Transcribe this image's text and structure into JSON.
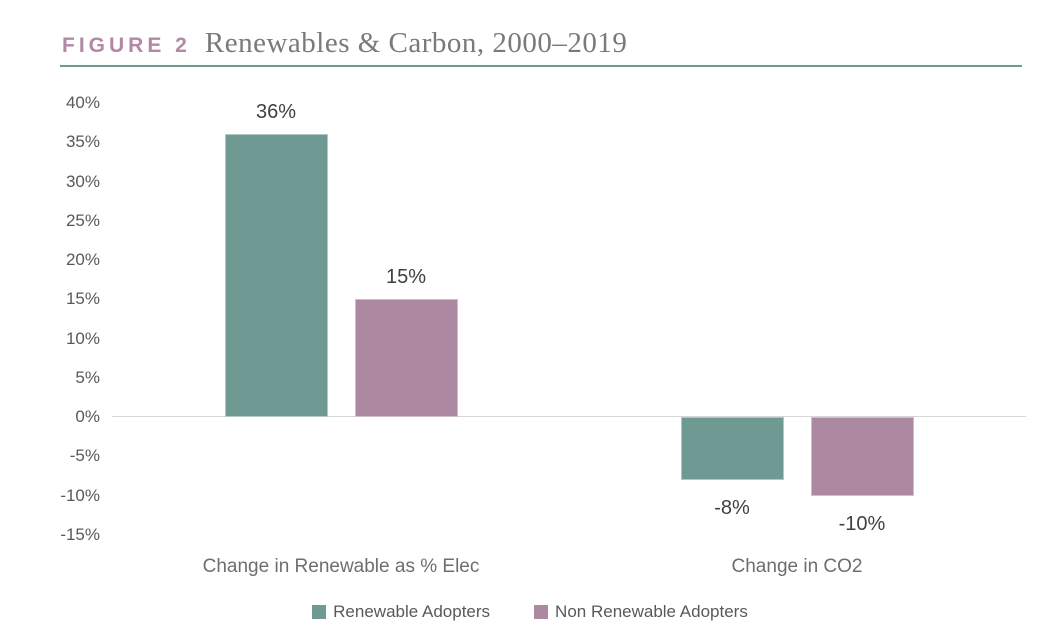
{
  "header": {
    "figure_label": "FIGURE 2",
    "title": "Renewables & Carbon, 2000–2019"
  },
  "colors": {
    "figure_label_text": "#B288A5",
    "title_text": "#7A7A7A",
    "title_underline": "#6E9A94",
    "axis_line": "#D6D6D6",
    "tick_text": "#595959",
    "data_label_text": "#404040",
    "category_label_text": "#6E6E6E",
    "legend_text": "#595959",
    "series_teal": "#6F9A94",
    "series_mauve": "#AC89A1"
  },
  "chart_data": {
    "type": "bar",
    "title": "Renewables & Carbon, 2000–2019",
    "figure_number": "FIGURE 2",
    "categories": [
      "Change in Renewable as % Elec",
      "Change in CO2"
    ],
    "series": [
      {
        "name": "Renewable Adopters",
        "color": "#6F9A94",
        "values": [
          36,
          -8
        ],
        "labels": [
          "36%",
          "-8%"
        ]
      },
      {
        "name": "Non Renewable Adopters",
        "color": "#AC89A1",
        "values": [
          15,
          -10
        ],
        "labels": [
          "15%",
          "-10%"
        ]
      }
    ],
    "ylim": [
      -15,
      40
    ],
    "y_tick_values": [
      40,
      35,
      30,
      25,
      20,
      15,
      10,
      5,
      0,
      -5,
      -10,
      -15
    ],
    "y_tick_labels": [
      "40%",
      "35%",
      "30%",
      "25%",
      "20%",
      "15%",
      "10%",
      "5%",
      "0%",
      "-5%",
      "-10%",
      "-15%"
    ],
    "unit": "%",
    "grid": "zero-line-only",
    "legend_position": "bottom"
  }
}
